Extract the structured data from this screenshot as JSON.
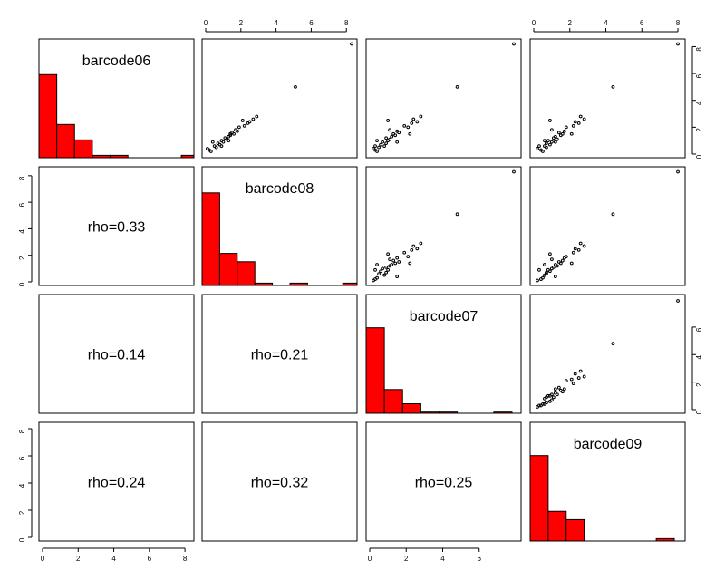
{
  "chart_data": {
    "type": "scatter-matrix",
    "variables": [
      "barcode06",
      "barcode08",
      "barcode07",
      "barcode09"
    ],
    "colors": {
      "histogram_fill": "#ff0000",
      "point_stroke": "#000000",
      "frame": "#000000"
    },
    "axes": [
      {
        "variable": "barcode06",
        "lim": [
          0,
          8.3
        ],
        "ticks": [
          0,
          2,
          4,
          6,
          8
        ]
      },
      {
        "variable": "barcode08",
        "lim": [
          0,
          8.4
        ],
        "ticks": [
          0,
          2,
          4,
          6,
          8
        ]
      },
      {
        "variable": "barcode07",
        "lim": [
          0,
          8.1
        ],
        "ticks": [
          0,
          2,
          4,
          6
        ]
      },
      {
        "variable": "barcode09",
        "lim": [
          0,
          8.2
        ],
        "ticks": [
          0,
          2,
          4,
          6,
          8
        ]
      }
    ],
    "correlations": [
      {
        "row": 1,
        "col": 0,
        "label": "rho=0.33"
      },
      {
        "row": 2,
        "col": 0,
        "label": "rho=0.14"
      },
      {
        "row": 2,
        "col": 1,
        "label": "rho=0.21"
      },
      {
        "row": 3,
        "col": 0,
        "label": "rho=0.24"
      },
      {
        "row": 3,
        "col": 1,
        "label": "rho=0.32"
      },
      {
        "row": 3,
        "col": 2,
        "label": "rho=0.25"
      }
    ],
    "histograms": [
      {
        "variable": "barcode06",
        "bins": [
          [
            0,
            1,
            0.7
          ],
          [
            1,
            2,
            0.28
          ],
          [
            2,
            3,
            0.15
          ],
          [
            3,
            4,
            0.02
          ],
          [
            4,
            5,
            0.02
          ],
          [
            5,
            6,
            0
          ],
          [
            6,
            7,
            0
          ],
          [
            7,
            8,
            0
          ],
          [
            8,
            9,
            0.02
          ]
        ]
      },
      {
        "variable": "barcode08",
        "bins": [
          [
            0,
            1,
            0.78
          ],
          [
            1,
            2,
            0.27
          ],
          [
            2,
            3,
            0.2
          ],
          [
            3,
            4,
            0.02
          ],
          [
            4,
            5,
            0
          ],
          [
            5,
            6,
            0.02
          ],
          [
            6,
            7,
            0
          ],
          [
            7,
            8,
            0
          ],
          [
            8,
            9,
            0.02
          ]
        ]
      },
      {
        "variable": "barcode07",
        "bins": [
          [
            0,
            1,
            0.72
          ],
          [
            1,
            2,
            0.2
          ],
          [
            2,
            3,
            0.08
          ],
          [
            3,
            4,
            0.01
          ],
          [
            4,
            5,
            0.01
          ],
          [
            5,
            6,
            0
          ],
          [
            6,
            7,
            0
          ],
          [
            7,
            8,
            0.01
          ]
        ]
      },
      {
        "variable": "barcode09",
        "bins": [
          [
            0,
            1,
            0.72
          ],
          [
            1,
            2,
            0.25
          ],
          [
            2,
            3,
            0.18
          ],
          [
            3,
            4,
            0
          ],
          [
            4,
            5,
            0
          ],
          [
            5,
            6,
            0
          ],
          [
            6,
            7,
            0
          ],
          [
            7,
            8,
            0.02
          ]
        ]
      }
    ],
    "observations": [
      [
        0.2,
        0.3,
        0.4,
        0.5
      ],
      [
        0.3,
        0.2,
        0.3,
        0.4
      ],
      [
        0.5,
        0.6,
        0.5,
        0.7
      ],
      [
        0.6,
        0.5,
        0.8,
        0.6
      ],
      [
        0.7,
        0.8,
        0.6,
        0.9
      ],
      [
        0.8,
        0.7,
        0.9,
        0.7
      ],
      [
        0.9,
        1.0,
        0.7,
        1.0
      ],
      [
        1.0,
        0.9,
        1.0,
        0.8
      ],
      [
        1.1,
        1.2,
        1.1,
        1.3
      ],
      [
        1.2,
        1.1,
        0.9,
        1.1
      ],
      [
        1.3,
        1.3,
        1.2,
        1.2
      ],
      [
        1.4,
        1.4,
        1.4,
        1.5
      ],
      [
        1.5,
        1.6,
        1.3,
        1.6
      ],
      [
        1.6,
        1.5,
        1.6,
        1.4
      ],
      [
        1.7,
        1.8,
        1.5,
        1.7
      ],
      [
        2.0,
        1.9,
        2.1,
        1.8
      ],
      [
        2.1,
        2.2,
        1.9,
        2.2
      ],
      [
        2.3,
        2.4,
        2.3,
        2.5
      ],
      [
        2.4,
        2.5,
        2.6,
        2.3
      ],
      [
        2.6,
        2.7,
        2.4,
        2.8
      ],
      [
        2.8,
        2.9,
        2.8,
        2.6
      ],
      [
        0.4,
        0.1,
        0.2,
        0.2
      ],
      [
        1.0,
        1.3,
        0.4,
        0.6
      ],
      [
        1.5,
        1.4,
        2.2,
        2.1
      ],
      [
        5.0,
        5.1,
        4.8,
        4.4
      ],
      [
        8.2,
        8.3,
        7.9,
        8.0
      ],
      [
        0.6,
        0.9,
        0.3,
        0.3
      ],
      [
        1.8,
        1.7,
        1.1,
        1.0
      ],
      [
        2.5,
        2.1,
        1.0,
        0.9
      ],
      [
        0.9,
        0.4,
        1.5,
        1.2
      ]
    ]
  }
}
